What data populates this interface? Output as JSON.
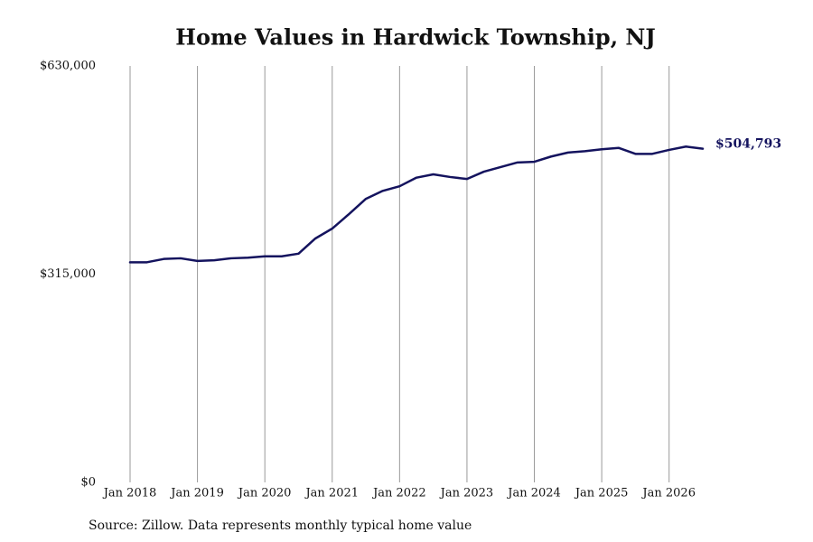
{
  "chart_data": {
    "type": "line",
    "title": "Home Values in Hardwick Township, NJ",
    "source": "Source: Zillow. Data represents monthly typical home value",
    "x": [
      2018,
      2018.25,
      2018.5,
      2018.75,
      2019,
      2019.25,
      2019.5,
      2019.75,
      2020,
      2020.25,
      2020.5,
      2020.75,
      2021,
      2021.25,
      2021.5,
      2021.75,
      2022,
      2022.25,
      2022.5,
      2022.75,
      2023,
      2023.25,
      2023.5,
      2023.75,
      2024,
      2024.25,
      2024.5,
      2024.75,
      2025,
      2025.25,
      2025.5,
      2025.75,
      2026,
      2026.25,
      2026.5
    ],
    "series": [
      {
        "name": "Home value",
        "color": "#14135e",
        "values": [
          333000,
          333000,
          338000,
          339000,
          335000,
          336000,
          339000,
          340000,
          342000,
          342000,
          346000,
          369000,
          384000,
          406000,
          429000,
          441000,
          448000,
          461000,
          466000,
          462000,
          459000,
          470000,
          477000,
          484000,
          485000,
          493000,
          499000,
          501000,
          504000,
          506000,
          497000,
          497000,
          503000,
          508000,
          504793
        ],
        "value_labels": [
          null,
          null,
          null,
          null,
          null,
          null,
          null,
          null,
          null,
          null,
          null,
          null,
          null,
          null,
          null,
          null,
          null,
          null,
          null,
          null,
          null,
          null,
          null,
          null,
          null,
          null,
          null,
          null,
          null,
          null,
          null,
          null,
          null,
          null,
          "$504,793"
        ]
      }
    ],
    "xlim": [
      2018,
      2026.5
    ],
    "xticks": [
      {
        "value": 2018,
        "label": "Jan 2018"
      },
      {
        "value": 2019,
        "label": "Jan 2019"
      },
      {
        "value": 2020,
        "label": "Jan 2020"
      },
      {
        "value": 2021,
        "label": "Jan 2021"
      },
      {
        "value": 2022,
        "label": "Jan 2022"
      },
      {
        "value": 2023,
        "label": "Jan 2023"
      },
      {
        "value": 2024,
        "label": "Jan 2024"
      },
      {
        "value": 2025,
        "label": "Jan 2025"
      },
      {
        "value": 2026,
        "label": "Jan 2026"
      }
    ],
    "ylim": [
      0,
      630000
    ],
    "yticks": [
      {
        "value": 0,
        "label": "$0"
      },
      {
        "value": 315000,
        "label": "$315,000"
      },
      {
        "value": 630000,
        "label": "$630,000"
      }
    ],
    "grid": true
  }
}
